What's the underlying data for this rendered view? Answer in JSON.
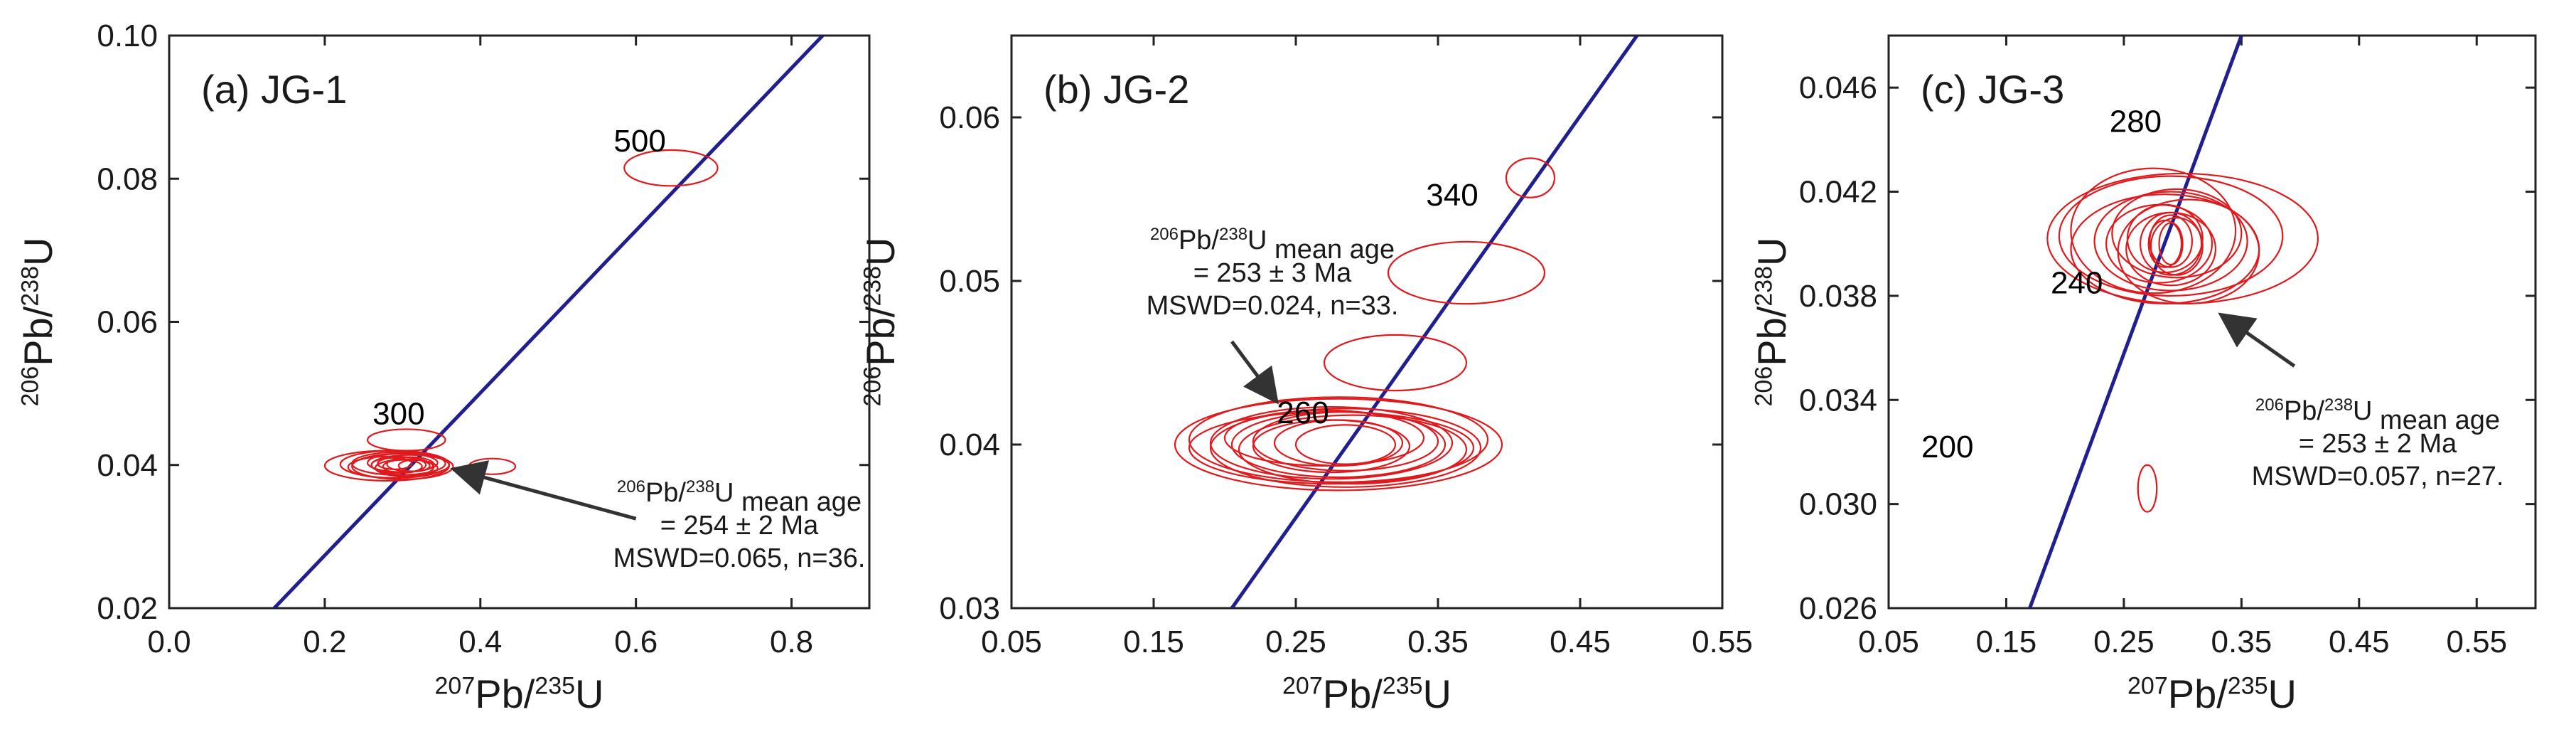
{
  "chart_data": [
    {
      "type": "scatter",
      "title": "(a) JG-1",
      "xlabel": {
        "sup1": "207",
        "base1": "Pb/",
        "sup2": "235",
        "base2": "U"
      },
      "ylabel": {
        "sup1": "206",
        "base1": "Pb/",
        "sup2": "238",
        "base2": "U"
      },
      "xlim": [
        0.0,
        0.9
      ],
      "ylim": [
        0.02,
        0.1
      ],
      "xticks": [
        "0.0",
        "0.2",
        "0.4",
        "0.6",
        "0.8"
      ],
      "xtick_values": [
        0.0,
        0.2,
        0.4,
        0.6,
        0.8
      ],
      "yticks": [
        "0.02",
        "0.04",
        "0.06",
        "0.08",
        "0.10"
      ],
      "ytick_values": [
        0.02,
        0.04,
        0.06,
        0.08,
        0.1
      ],
      "concordia_color": "#1f1f8f",
      "ellipse_color": "#e0191d",
      "concordia_line": {
        "x": [
          0.135,
          0.84
        ],
        "y": [
          0.02,
          0.1
        ]
      },
      "age_labels": [
        {
          "text": "500",
          "x": 0.605,
          "y": 0.0838
        },
        {
          "text": "300",
          "x": 0.295,
          "y": 0.0457
        }
      ],
      "ellipses": [
        {
          "cx": 0.645,
          "cy": 0.0815,
          "rx": 0.06,
          "ry": 0.0025
        },
        {
          "cx": 0.305,
          "cy": 0.0435,
          "rx": 0.05,
          "ry": 0.0015
        },
        {
          "cx": 0.415,
          "cy": 0.0398,
          "rx": 0.03,
          "ry": 0.0011
        },
        {
          "cx": 0.28,
          "cy": 0.0399,
          "rx": 0.08,
          "ry": 0.0021
        },
        {
          "cx": 0.29,
          "cy": 0.0401,
          "rx": 0.07,
          "ry": 0.0019
        },
        {
          "cx": 0.3,
          "cy": 0.0398,
          "rx": 0.065,
          "ry": 0.0018
        },
        {
          "cx": 0.295,
          "cy": 0.0402,
          "rx": 0.06,
          "ry": 0.0016
        },
        {
          "cx": 0.285,
          "cy": 0.0397,
          "rx": 0.055,
          "ry": 0.0015
        },
        {
          "cx": 0.31,
          "cy": 0.04,
          "rx": 0.05,
          "ry": 0.0014
        },
        {
          "cx": 0.3,
          "cy": 0.0403,
          "rx": 0.045,
          "ry": 0.0013
        },
        {
          "cx": 0.305,
          "cy": 0.0396,
          "rx": 0.04,
          "ry": 0.0012
        },
        {
          "cx": 0.295,
          "cy": 0.04,
          "rx": 0.035,
          "ry": 0.0011
        },
        {
          "cx": 0.31,
          "cy": 0.0401,
          "rx": 0.03,
          "ry": 0.001
        },
        {
          "cx": 0.3,
          "cy": 0.0398,
          "rx": 0.025,
          "ry": 0.0009
        },
        {
          "cx": 0.29,
          "cy": 0.0402,
          "rx": 0.022,
          "ry": 0.0008
        },
        {
          "cx": 0.315,
          "cy": 0.0399,
          "rx": 0.02,
          "ry": 0.0008
        }
      ],
      "annotation": {
        "lines": [
          "mean age",
          "= 254 ± 2 Ma",
          "MSWD=0.065, n=36."
        ],
        "sup1": "206",
        "base1": "Pb/",
        "sup2": "238",
        "base2": "U"
      },
      "arrow": {
        "from": [
          0.6,
          0.0325
        ],
        "to": [
          0.37,
          0.0393
        ]
      }
    },
    {
      "type": "scatter",
      "title": "(b) JG-2",
      "xlabel": {
        "sup1": "207",
        "base1": "Pb/",
        "sup2": "235",
        "base2": "U"
      },
      "ylabel": {
        "sup1": "206",
        "base1": "Pb/",
        "sup2": "238",
        "base2": "U"
      },
      "xlim": [
        0.05,
        0.55
      ],
      "ylim": [
        0.03,
        0.065
      ],
      "xticks": [
        "0.05",
        "0.15",
        "0.25",
        "0.35",
        "0.45",
        "0.55"
      ],
      "xtick_values": [
        0.05,
        0.15,
        0.25,
        0.35,
        0.45,
        0.55
      ],
      "yticks": [
        "0.03",
        "0.04",
        "0.05",
        "0.06"
      ],
      "ytick_values": [
        0.03,
        0.04,
        0.05,
        0.06
      ],
      "concordia_color": "#1f1f8f",
      "ellipse_color": "#e0191d",
      "concordia_line": {
        "x": [
          0.205,
          0.49
        ],
        "y": [
          0.03,
          0.065
        ]
      },
      "age_labels": [
        {
          "text": "340",
          "x": 0.36,
          "y": 0.0546
        },
        {
          "text": "260",
          "x": 0.255,
          "y": 0.0413
        }
      ],
      "ellipses": [
        {
          "cx": 0.415,
          "cy": 0.0563,
          "rx": 0.017,
          "ry": 0.0012
        },
        {
          "cx": 0.37,
          "cy": 0.0505,
          "rx": 0.055,
          "ry": 0.0019
        },
        {
          "cx": 0.32,
          "cy": 0.045,
          "rx": 0.05,
          "ry": 0.0017
        },
        {
          "cx": 0.28,
          "cy": 0.04,
          "rx": 0.115,
          "ry": 0.0028
        },
        {
          "cx": 0.28,
          "cy": 0.0403,
          "rx": 0.105,
          "ry": 0.0026
        },
        {
          "cx": 0.285,
          "cy": 0.0398,
          "rx": 0.095,
          "ry": 0.0024
        },
        {
          "cx": 0.275,
          "cy": 0.0401,
          "rx": 0.085,
          "ry": 0.0022
        },
        {
          "cx": 0.28,
          "cy": 0.04,
          "rx": 0.075,
          "ry": 0.002
        },
        {
          "cx": 0.285,
          "cy": 0.0402,
          "rx": 0.065,
          "ry": 0.0018
        },
        {
          "cx": 0.275,
          "cy": 0.0399,
          "rx": 0.055,
          "ry": 0.0016
        },
        {
          "cx": 0.28,
          "cy": 0.0401,
          "rx": 0.045,
          "ry": 0.0014
        },
        {
          "cx": 0.285,
          "cy": 0.04,
          "rx": 0.035,
          "ry": 0.0012
        },
        {
          "cx": 0.27,
          "cy": 0.0404,
          "rx": 0.07,
          "ry": 0.0017
        },
        {
          "cx": 0.29,
          "cy": 0.0397,
          "rx": 0.08,
          "ry": 0.0021
        },
        {
          "cx": 0.275,
          "cy": 0.0398,
          "rx": 0.1,
          "ry": 0.0022
        }
      ],
      "annotation": {
        "lines": [
          "mean age",
          "= 253 ± 3 Ma",
          "MSWD=0.024, n=33."
        ],
        "sup1": "206",
        "base1": "Pb/",
        "sup2": "238",
        "base2": "U"
      },
      "arrow": {
        "from": [
          0.205,
          0.0463
        ],
        "to": [
          0.235,
          0.0428
        ]
      }
    },
    {
      "type": "scatter",
      "title": "(c) JG-3",
      "xlabel": {
        "sup1": "207",
        "base1": "Pb/",
        "sup2": "235",
        "base2": "U"
      },
      "ylabel": {
        "sup1": "206",
        "base1": "Pb/",
        "sup2": "238",
        "base2": "U"
      },
      "xlim": [
        0.05,
        0.6
      ],
      "ylim": [
        0.026,
        0.048
      ],
      "xticks": [
        "0.05",
        "0.15",
        "0.25",
        "0.35",
        "0.45",
        "0.55"
      ],
      "xtick_values": [
        0.05,
        0.15,
        0.25,
        0.35,
        0.45,
        0.55
      ],
      "yticks": [
        "0.026",
        "0.030",
        "0.034",
        "0.038",
        "0.042",
        "0.046"
      ],
      "ytick_values": [
        0.026,
        0.03,
        0.034,
        0.038,
        0.042,
        0.046
      ],
      "concordia_color": "#1f1f8f",
      "ellipse_color": "#e0191d",
      "concordia_line": {
        "x": [
          0.17,
          0.35
        ],
        "y": [
          0.026,
          0.048
        ]
      },
      "age_labels": [
        {
          "text": "280",
          "x": 0.26,
          "y": 0.0443
        },
        {
          "text": "240",
          "x": 0.21,
          "y": 0.0381
        },
        {
          "text": "200",
          "x": 0.1,
          "y": 0.0318
        }
      ],
      "ellipses": [
        {
          "cx": 0.27,
          "cy": 0.0306,
          "rx": 0.008,
          "ry": 0.0009
        },
        {
          "cx": 0.3,
          "cy": 0.0402,
          "rx": 0.115,
          "ry": 0.0025
        },
        {
          "cx": 0.29,
          "cy": 0.0403,
          "rx": 0.095,
          "ry": 0.0023
        },
        {
          "cx": 0.285,
          "cy": 0.0398,
          "rx": 0.08,
          "ry": 0.0021
        },
        {
          "cx": 0.29,
          "cy": 0.0401,
          "rx": 0.065,
          "ry": 0.0019
        },
        {
          "cx": 0.295,
          "cy": 0.0404,
          "rx": 0.055,
          "ry": 0.0017
        },
        {
          "cx": 0.28,
          "cy": 0.04,
          "rx": 0.045,
          "ry": 0.0015
        },
        {
          "cx": 0.29,
          "cy": 0.0398,
          "rx": 0.038,
          "ry": 0.0014
        },
        {
          "cx": 0.285,
          "cy": 0.0402,
          "rx": 0.032,
          "ry": 0.0013
        },
        {
          "cx": 0.29,
          "cy": 0.04,
          "rx": 0.026,
          "ry": 0.0012
        },
        {
          "cx": 0.295,
          "cy": 0.0399,
          "rx": 0.022,
          "ry": 0.0011
        },
        {
          "cx": 0.29,
          "cy": 0.0401,
          "rx": 0.018,
          "ry": 0.001
        },
        {
          "cx": 0.285,
          "cy": 0.04,
          "rx": 0.014,
          "ry": 0.0009
        },
        {
          "cx": 0.29,
          "cy": 0.04,
          "rx": 0.01,
          "ry": 0.0008
        },
        {
          "cx": 0.275,
          "cy": 0.0405,
          "rx": 0.07,
          "ry": 0.0024
        },
        {
          "cx": 0.305,
          "cy": 0.0397,
          "rx": 0.06,
          "ry": 0.002
        }
      ],
      "annotation": {
        "lines": [
          "mean age",
          "= 253 ± 2 Ma",
          "MSWD=0.057, n=27."
        ],
        "sup1": "206",
        "base1": "Pb/",
        "sup2": "238",
        "base2": "U"
      },
      "arrow": {
        "from": [
          0.395,
          0.0353
        ],
        "to": [
          0.335,
          0.0372
        ]
      }
    }
  ]
}
